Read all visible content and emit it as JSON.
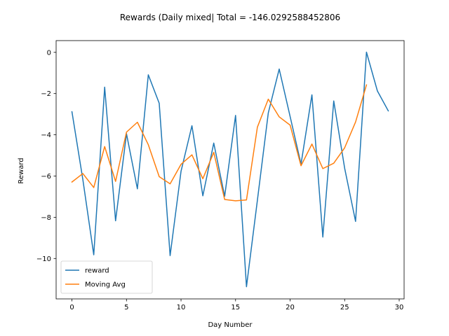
{
  "chart_data": {
    "type": "line",
    "title": "Rewards (Daily mixed| Total = -146.0292588452806",
    "xlabel": "Day Number",
    "ylabel": "Reward",
    "xlim": [
      -1.45,
      30.45
    ],
    "ylim": [
      -11.96,
      0.57
    ],
    "xticks": [
      0,
      5,
      10,
      15,
      20,
      25,
      30
    ],
    "yticks": [
      0,
      -2,
      -4,
      -6,
      -8,
      -10
    ],
    "ytick_labels": [
      "0",
      "−2",
      "−4",
      "−6",
      "−8",
      "−10"
    ],
    "grid": false,
    "legend_position": "lower-left",
    "series": [
      {
        "name": "reward",
        "color": "#1f77b4",
        "x": [
          0,
          1,
          2,
          3,
          4,
          5,
          6,
          7,
          8,
          9,
          10,
          11,
          12,
          13,
          14,
          15,
          16,
          17,
          18,
          19,
          20,
          21,
          22,
          23,
          24,
          25,
          26,
          27,
          28,
          29
        ],
        "values": [
          -2.88,
          -6.17,
          -9.82,
          -1.69,
          -8.17,
          -3.95,
          -6.62,
          -1.09,
          -2.47,
          -9.86,
          -5.77,
          -3.56,
          -6.96,
          -4.4,
          -6.98,
          -3.06,
          -11.37,
          -7.18,
          -2.94,
          -0.81,
          -3.11,
          -5.42,
          -2.06,
          -8.96,
          -2.36,
          -5.62,
          -8.2,
          0.01,
          -1.87,
          -2.84
        ]
      },
      {
        "name": "Moving Avg",
        "color": "#ff7f0e",
        "x": [
          0,
          1,
          2,
          3,
          4,
          5,
          6,
          7,
          8,
          9,
          10,
          11,
          12,
          13,
          14,
          15,
          16,
          17,
          18,
          19,
          20,
          21,
          22,
          23,
          24,
          25,
          26,
          27
        ],
        "values": [
          -6.29,
          -5.88,
          -6.56,
          -4.57,
          -6.26,
          -3.87,
          -3.39,
          -4.48,
          -6.03,
          -6.38,
          -5.43,
          -4.97,
          -6.13,
          -4.85,
          -7.14,
          -7.2,
          -7.16,
          -3.63,
          -2.27,
          -3.13,
          -3.53,
          -5.5,
          -4.45,
          -5.64,
          -5.38,
          -4.63,
          -3.38,
          -1.58
        ]
      }
    ]
  }
}
